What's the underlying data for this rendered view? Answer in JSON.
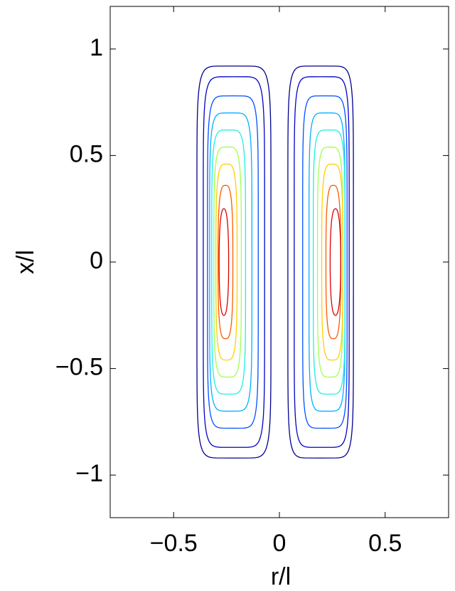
{
  "chart_data": {
    "type": "contour",
    "xlabel": "r/l",
    "ylabel": "x/l",
    "xlim": [
      -0.8,
      0.8
    ],
    "ylim": [
      -1.2,
      1.2
    ],
    "xticks": [
      {
        "value": -0.5,
        "label": "−0.5"
      },
      0,
      0.5
    ],
    "yticks": [
      {
        "value": -1,
        "label": "−1"
      },
      {
        "value": -0.5,
        "label": "−0.5"
      },
      0,
      0.5,
      1
    ],
    "contours": [
      {
        "color": "#00008f",
        "r": [
          -0.39,
          -0.04
        ],
        "x": [
          -0.92,
          0.92
        ]
      },
      {
        "color": "#0000c8",
        "r": [
          -0.36,
          -0.07
        ],
        "x": [
          -0.87,
          0.87
        ]
      },
      {
        "color": "#0050ff",
        "r": [
          -0.34,
          -0.1
        ],
        "x": [
          -0.78,
          0.78
        ]
      },
      {
        "color": "#00b0ff",
        "r": [
          -0.33,
          -0.13
        ],
        "x": [
          -0.7,
          0.7
        ]
      },
      {
        "color": "#20f0e0",
        "r": [
          -0.32,
          -0.16
        ],
        "x": [
          -0.62,
          0.62
        ]
      },
      {
        "color": "#a0ff50",
        "r": [
          -0.31,
          -0.18
        ],
        "x": [
          -0.54,
          0.54
        ]
      },
      {
        "color": "#ffd000",
        "r": [
          -0.3,
          -0.2
        ],
        "x": [
          -0.46,
          0.46
        ]
      },
      {
        "color": "#ff5a00",
        "r": [
          -0.29,
          -0.22
        ],
        "x": [
          -0.36,
          0.36
        ]
      },
      {
        "color": "#e00000",
        "r": [
          -0.285,
          -0.24
        ],
        "x": [
          -0.25,
          0.25
        ]
      },
      {
        "color": "#00008f",
        "r": [
          0.04,
          0.35
        ],
        "x": [
          -0.92,
          0.92
        ]
      },
      {
        "color": "#0000c8",
        "r": [
          0.07,
          0.33
        ],
        "x": [
          -0.87,
          0.87
        ]
      },
      {
        "color": "#0050ff",
        "r": [
          0.11,
          0.32
        ],
        "x": [
          -0.78,
          0.78
        ]
      },
      {
        "color": "#00b0ff",
        "r": [
          0.14,
          0.31
        ],
        "x": [
          -0.7,
          0.7
        ]
      },
      {
        "color": "#20f0e0",
        "r": [
          0.16,
          0.31
        ],
        "x": [
          -0.62,
          0.62
        ]
      },
      {
        "color": "#a0ff50",
        "r": [
          0.18,
          0.3
        ],
        "x": [
          -0.54,
          0.54
        ]
      },
      {
        "color": "#ffd000",
        "r": [
          0.2,
          0.3
        ],
        "x": [
          -0.46,
          0.46
        ]
      },
      {
        "color": "#ff5a00",
        "r": [
          0.22,
          0.29
        ],
        "x": [
          -0.36,
          0.36
        ]
      },
      {
        "color": "#e00000",
        "r": [
          0.24,
          0.29
        ],
        "x": [
          -0.25,
          0.25
        ]
      }
    ]
  }
}
